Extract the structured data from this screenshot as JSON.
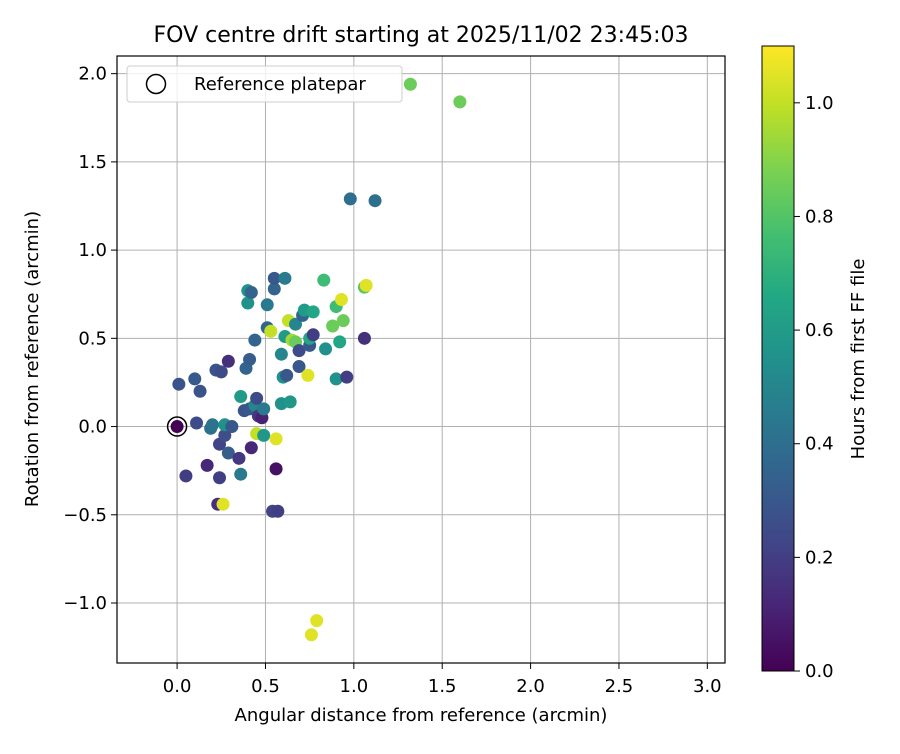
{
  "chart_data": {
    "type": "scatter",
    "title": "FOV centre drift starting at 2025/11/02 23:45:03",
    "xlabel": "Angular distance from reference (arcmin)",
    "ylabel": "Rotation from reference (arcmin)",
    "xlim": [
      -0.34,
      3.1
    ],
    "ylim": [
      -1.34,
      2.1
    ],
    "xticks": [
      "0.0",
      "0.5",
      "1.0",
      "1.5",
      "2.0",
      "2.5",
      "3.0"
    ],
    "yticks": [
      "−1.0",
      "−0.5",
      "0.0",
      "0.5",
      "1.0",
      "1.5",
      "2.0"
    ],
    "grid": true,
    "legend": {
      "placement": "top-left",
      "entries": [
        "Reference platepar"
      ]
    },
    "colorbar": {
      "label": "Hours from first FF file",
      "colormap": "viridis",
      "range": [
        0.0,
        1.1
      ],
      "ticks": [
        "0.0",
        "0.2",
        "0.4",
        "0.6",
        "0.8",
        "1.0"
      ]
    },
    "reference_point": {
      "x": 0.0,
      "y": 0.0
    },
    "points": [
      {
        "x": 0.0,
        "y": 0.0,
        "c": 0.0
      },
      {
        "x": 0.01,
        "y": 0.24,
        "c": 0.28
      },
      {
        "x": 0.05,
        "y": -0.28,
        "c": 0.2
      },
      {
        "x": 0.1,
        "y": 0.27,
        "c": 0.31
      },
      {
        "x": 0.11,
        "y": 0.02,
        "c": 0.25
      },
      {
        "x": 0.13,
        "y": 0.2,
        "c": 0.28
      },
      {
        "x": 0.17,
        "y": -0.22,
        "c": 0.12
      },
      {
        "x": 0.19,
        "y": -0.01,
        "c": 0.4
      },
      {
        "x": 0.2,
        "y": 0.01,
        "c": 0.42
      },
      {
        "x": 0.22,
        "y": 0.32,
        "c": 0.28
      },
      {
        "x": 0.23,
        "y": -0.44,
        "c": 0.15
      },
      {
        "x": 0.24,
        "y": -0.29,
        "c": 0.2
      },
      {
        "x": 0.24,
        "y": -0.1,
        "c": 0.22
      },
      {
        "x": 0.25,
        "y": 0.31,
        "c": 0.25
      },
      {
        "x": 0.26,
        "y": -0.44,
        "c": 1.05
      },
      {
        "x": 0.27,
        "y": -0.05,
        "c": 0.26
      },
      {
        "x": 0.27,
        "y": 0.01,
        "c": 0.55
      },
      {
        "x": 0.29,
        "y": 0.37,
        "c": 0.15
      },
      {
        "x": 0.29,
        "y": -0.15,
        "c": 0.32
      },
      {
        "x": 0.31,
        "y": 0.0,
        "c": 0.3
      },
      {
        "x": 0.35,
        "y": -0.18,
        "c": 0.18
      },
      {
        "x": 0.36,
        "y": -0.27,
        "c": 0.45
      },
      {
        "x": 0.36,
        "y": 0.17,
        "c": 0.6
      },
      {
        "x": 0.38,
        "y": 0.09,
        "c": 0.28
      },
      {
        "x": 0.39,
        "y": 0.33,
        "c": 0.35
      },
      {
        "x": 0.4,
        "y": 0.7,
        "c": 0.55
      },
      {
        "x": 0.4,
        "y": 0.77,
        "c": 0.55
      },
      {
        "x": 0.41,
        "y": 0.38,
        "c": 0.32
      },
      {
        "x": 0.41,
        "y": 0.1,
        "c": 0.3
      },
      {
        "x": 0.42,
        "y": -0.12,
        "c": 0.12
      },
      {
        "x": 0.42,
        "y": 0.76,
        "c": 0.35
      },
      {
        "x": 0.44,
        "y": 0.12,
        "c": 0.5
      },
      {
        "x": 0.44,
        "y": 0.49,
        "c": 0.35
      },
      {
        "x": 0.45,
        "y": 0.16,
        "c": 0.25
      },
      {
        "x": 0.45,
        "y": -0.04,
        "c": 1.0
      },
      {
        "x": 0.46,
        "y": 0.06,
        "c": 0.18
      },
      {
        "x": 0.48,
        "y": 0.05,
        "c": 0.1
      },
      {
        "x": 0.49,
        "y": 0.1,
        "c": 0.45
      },
      {
        "x": 0.49,
        "y": -0.05,
        "c": 0.58
      },
      {
        "x": 0.51,
        "y": 0.56,
        "c": 0.35
      },
      {
        "x": 0.51,
        "y": 0.69,
        "c": 0.45
      },
      {
        "x": 0.53,
        "y": 0.54,
        "c": 1.0
      },
      {
        "x": 0.54,
        "y": -0.48,
        "c": 0.22
      },
      {
        "x": 0.55,
        "y": 0.78,
        "c": 0.35
      },
      {
        "x": 0.55,
        "y": 0.84,
        "c": 0.3
      },
      {
        "x": 0.56,
        "y": -0.24,
        "c": 0.05
      },
      {
        "x": 0.56,
        "y": -0.07,
        "c": 1.05
      },
      {
        "x": 0.57,
        "y": -0.48,
        "c": 0.2
      },
      {
        "x": 0.59,
        "y": 0.41,
        "c": 0.5
      },
      {
        "x": 0.59,
        "y": 0.13,
        "c": 0.55
      },
      {
        "x": 0.6,
        "y": 0.28,
        "c": 0.55
      },
      {
        "x": 0.61,
        "y": 0.84,
        "c": 0.45
      },
      {
        "x": 0.61,
        "y": 0.51,
        "c": 0.6
      },
      {
        "x": 0.62,
        "y": 0.29,
        "c": 0.3
      },
      {
        "x": 0.63,
        "y": 0.6,
        "c": 1.0
      },
      {
        "x": 0.64,
        "y": 0.14,
        "c": 0.58
      },
      {
        "x": 0.65,
        "y": 0.49,
        "c": 0.95
      },
      {
        "x": 0.67,
        "y": 0.58,
        "c": 0.5
      },
      {
        "x": 0.67,
        "y": 0.48,
        "c": 0.85
      },
      {
        "x": 0.69,
        "y": 0.43,
        "c": 0.25
      },
      {
        "x": 0.69,
        "y": 0.34,
        "c": 0.3
      },
      {
        "x": 0.71,
        "y": 0.63,
        "c": 0.35
      },
      {
        "x": 0.72,
        "y": 0.66,
        "c": 0.6
      },
      {
        "x": 0.74,
        "y": 0.29,
        "c": 1.05
      },
      {
        "x": 0.75,
        "y": 0.46,
        "c": 0.3
      },
      {
        "x": 0.75,
        "y": 0.5,
        "c": 0.65
      },
      {
        "x": 0.76,
        "y": -1.18,
        "c": 1.05
      },
      {
        "x": 0.77,
        "y": 0.52,
        "c": 0.2
      },
      {
        "x": 0.77,
        "y": 0.65,
        "c": 0.65
      },
      {
        "x": 0.79,
        "y": -1.1,
        "c": 1.05
      },
      {
        "x": 0.83,
        "y": 0.83,
        "c": 0.75
      },
      {
        "x": 0.84,
        "y": 0.44,
        "c": 0.55
      },
      {
        "x": 0.88,
        "y": 0.57,
        "c": 0.85
      },
      {
        "x": 0.9,
        "y": 0.27,
        "c": 0.55
      },
      {
        "x": 0.9,
        "y": 0.68,
        "c": 0.75
      },
      {
        "x": 0.92,
        "y": 0.48,
        "c": 0.65
      },
      {
        "x": 0.93,
        "y": 0.72,
        "c": 1.05
      },
      {
        "x": 0.94,
        "y": 0.6,
        "c": 0.85
      },
      {
        "x": 0.96,
        "y": 0.28,
        "c": 0.2
      },
      {
        "x": 0.98,
        "y": 1.29,
        "c": 0.4
      },
      {
        "x": 1.06,
        "y": 0.5,
        "c": 0.15
      },
      {
        "x": 1.06,
        "y": 0.79,
        "c": 0.8
      },
      {
        "x": 1.07,
        "y": 0.8,
        "c": 1.05
      },
      {
        "x": 1.12,
        "y": 1.28,
        "c": 0.4
      },
      {
        "x": 1.32,
        "y": 1.94,
        "c": 0.85
      },
      {
        "x": 1.6,
        "y": 1.84,
        "c": 0.85
      }
    ]
  }
}
